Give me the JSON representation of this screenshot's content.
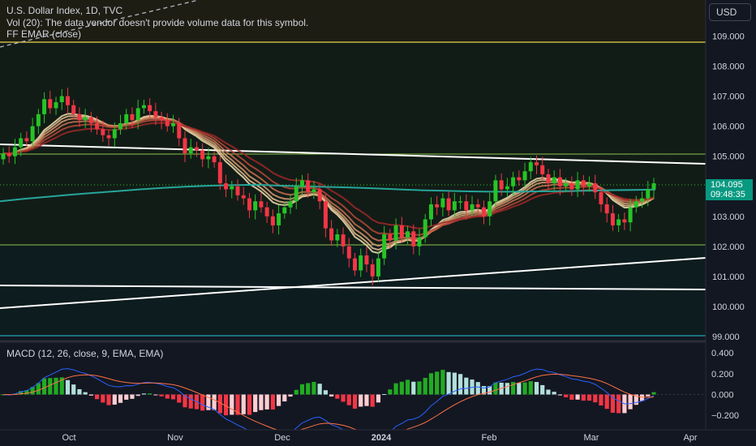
{
  "header": {
    "symbol_line": "U.S. Dollar Index, 1D, TVC",
    "volume_line": "Vol (20): The data vendor doesn't provide volume data for this symbol.",
    "indicator_line": "FF EMAR (close)"
  },
  "currency_button": "USD",
  "price_label": {
    "price": "104.095",
    "countdown": "09:48:35"
  },
  "macd_label": "MACD (12, 26, close, 9, EMA, EMA)",
  "colors": {
    "up": "#26c426",
    "down": "#f23645",
    "ema200": "#26a69a",
    "bg": "#131722",
    "signal_line": "#ff7043",
    "macd_line": "#2962ff"
  },
  "chart_data": [
    {
      "type": "candlestick",
      "title": "U.S. Dollar Index, 1D, TVC",
      "y_ticks": [
        "109.000",
        "108.000",
        "107.000",
        "106.000",
        "105.000",
        "103.000",
        "102.000",
        "101.000",
        "100.000",
        "99.000"
      ],
      "ylim": [
        99.0,
        109.7
      ],
      "x_ticks": [
        "Oct",
        "Nov",
        "Dec",
        "2024",
        "Feb",
        "Mar",
        "Apr"
      ],
      "close_series": [
        105.1,
        105.0,
        105.3,
        105.6,
        105.5,
        106.0,
        106.4,
        106.9,
        106.6,
        106.8,
        107.0,
        106.7,
        106.4,
        106.2,
        106.3,
        106.1,
        105.9,
        105.7,
        105.6,
        105.9,
        106.1,
        106.4,
        106.2,
        106.6,
        106.7,
        106.5,
        106.3,
        106.2,
        106.0,
        106.1,
        105.6,
        105.1,
        105.3,
        105.2,
        104.9,
        105.0,
        104.8,
        104.1,
        103.9,
        104.0,
        103.7,
        103.6,
        103.2,
        103.5,
        103.3,
        103.0,
        102.7,
        103.1,
        103.3,
        103.5,
        104.0,
        104.2,
        103.8,
        103.9,
        103.5,
        102.6,
        102.2,
        102.4,
        102.0,
        101.6,
        101.2,
        101.7,
        101.4,
        101.0,
        101.6,
        102.4,
        102.2,
        102.7,
        102.3,
        102.5,
        102.0,
        102.3,
        102.9,
        103.4,
        103.3,
        103.6,
        103.2,
        103.5,
        103.5,
        103.2,
        103.4,
        103.3,
        103.0,
        103.5,
        104.2,
        103.9,
        104.0,
        104.3,
        104.2,
        104.5,
        104.8,
        104.7,
        104.4,
        104.1,
        104.3,
        104.0,
        104.1,
        103.9,
        104.2,
        104.0,
        104.1,
        103.8,
        103.4,
        103.1,
        102.7,
        102.9,
        102.8,
        103.3,
        103.5,
        103.6,
        103.9,
        104.1
      ],
      "ema200": [
        103.5,
        103.58,
        103.65,
        103.72,
        103.78,
        103.84,
        103.9,
        103.95,
        103.99,
        104.02,
        104.04,
        104.05,
        104.02,
        104.0,
        103.98,
        103.96,
        103.93,
        103.9,
        103.87,
        103.85,
        103.83,
        103.82,
        103.82,
        103.83,
        103.84,
        103.85,
        103.87,
        103.88,
        103.89
      ],
      "macd_hist_max_abs": 0.14,
      "macd_ticks": [
        "0.400",
        "0.200",
        "0.000",
        "−0.200"
      ],
      "macd_ylim": [
        -0.27,
        0.43
      ]
    }
  ]
}
